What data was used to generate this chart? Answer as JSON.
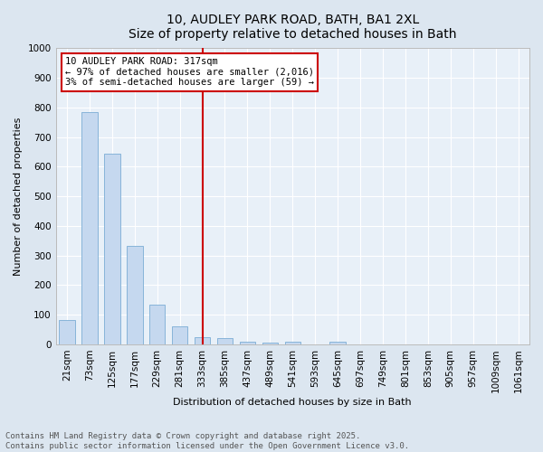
{
  "title_line1": "10, AUDLEY PARK ROAD, BATH, BA1 2XL",
  "title_line2": "Size of property relative to detached houses in Bath",
  "bar_values": [
    83,
    783,
    645,
    333,
    133,
    60,
    25,
    20,
    10,
    6,
    10,
    0,
    8,
    0,
    0,
    0,
    0,
    0,
    0,
    0,
    0
  ],
  "x_labels": [
    "21sqm",
    "73sqm",
    "125sqm",
    "177sqm",
    "229sqm",
    "281sqm",
    "333sqm",
    "385sqm",
    "437sqm",
    "489sqm",
    "541sqm",
    "593sqm",
    "645sqm",
    "697sqm",
    "749sqm",
    "801sqm",
    "853sqm",
    "905sqm",
    "957sqm",
    "1009sqm",
    "1061sqm"
  ],
  "ylabel": "Number of detached properties",
  "xlabel": "Distribution of detached houses by size in Bath",
  "ylim": [
    0,
    1000
  ],
  "yticks": [
    0,
    100,
    200,
    300,
    400,
    500,
    600,
    700,
    800,
    900,
    1000
  ],
  "bar_color": "#c5d8ef",
  "bar_edge_color": "#7aadd4",
  "red_line_x": 6,
  "annotation_text": "10 AUDLEY PARK ROAD: 317sqm\n← 97% of detached houses are smaller (2,016)\n3% of semi-detached houses are larger (59) →",
  "annotation_box_color": "#ffffff",
  "annotation_box_edge": "#cc0000",
  "footnote1": "Contains HM Land Registry data © Crown copyright and database right 2025.",
  "footnote2": "Contains public sector information licensed under the Open Government Licence v3.0.",
  "background_color": "#dce6f0",
  "plot_bg_color": "#e8f0f8",
  "grid_color": "#ffffff",
  "title_fontsize": 10,
  "axis_label_fontsize": 8,
  "tick_fontsize": 7.5,
  "footnote_fontsize": 6.5,
  "bar_width": 0.7
}
